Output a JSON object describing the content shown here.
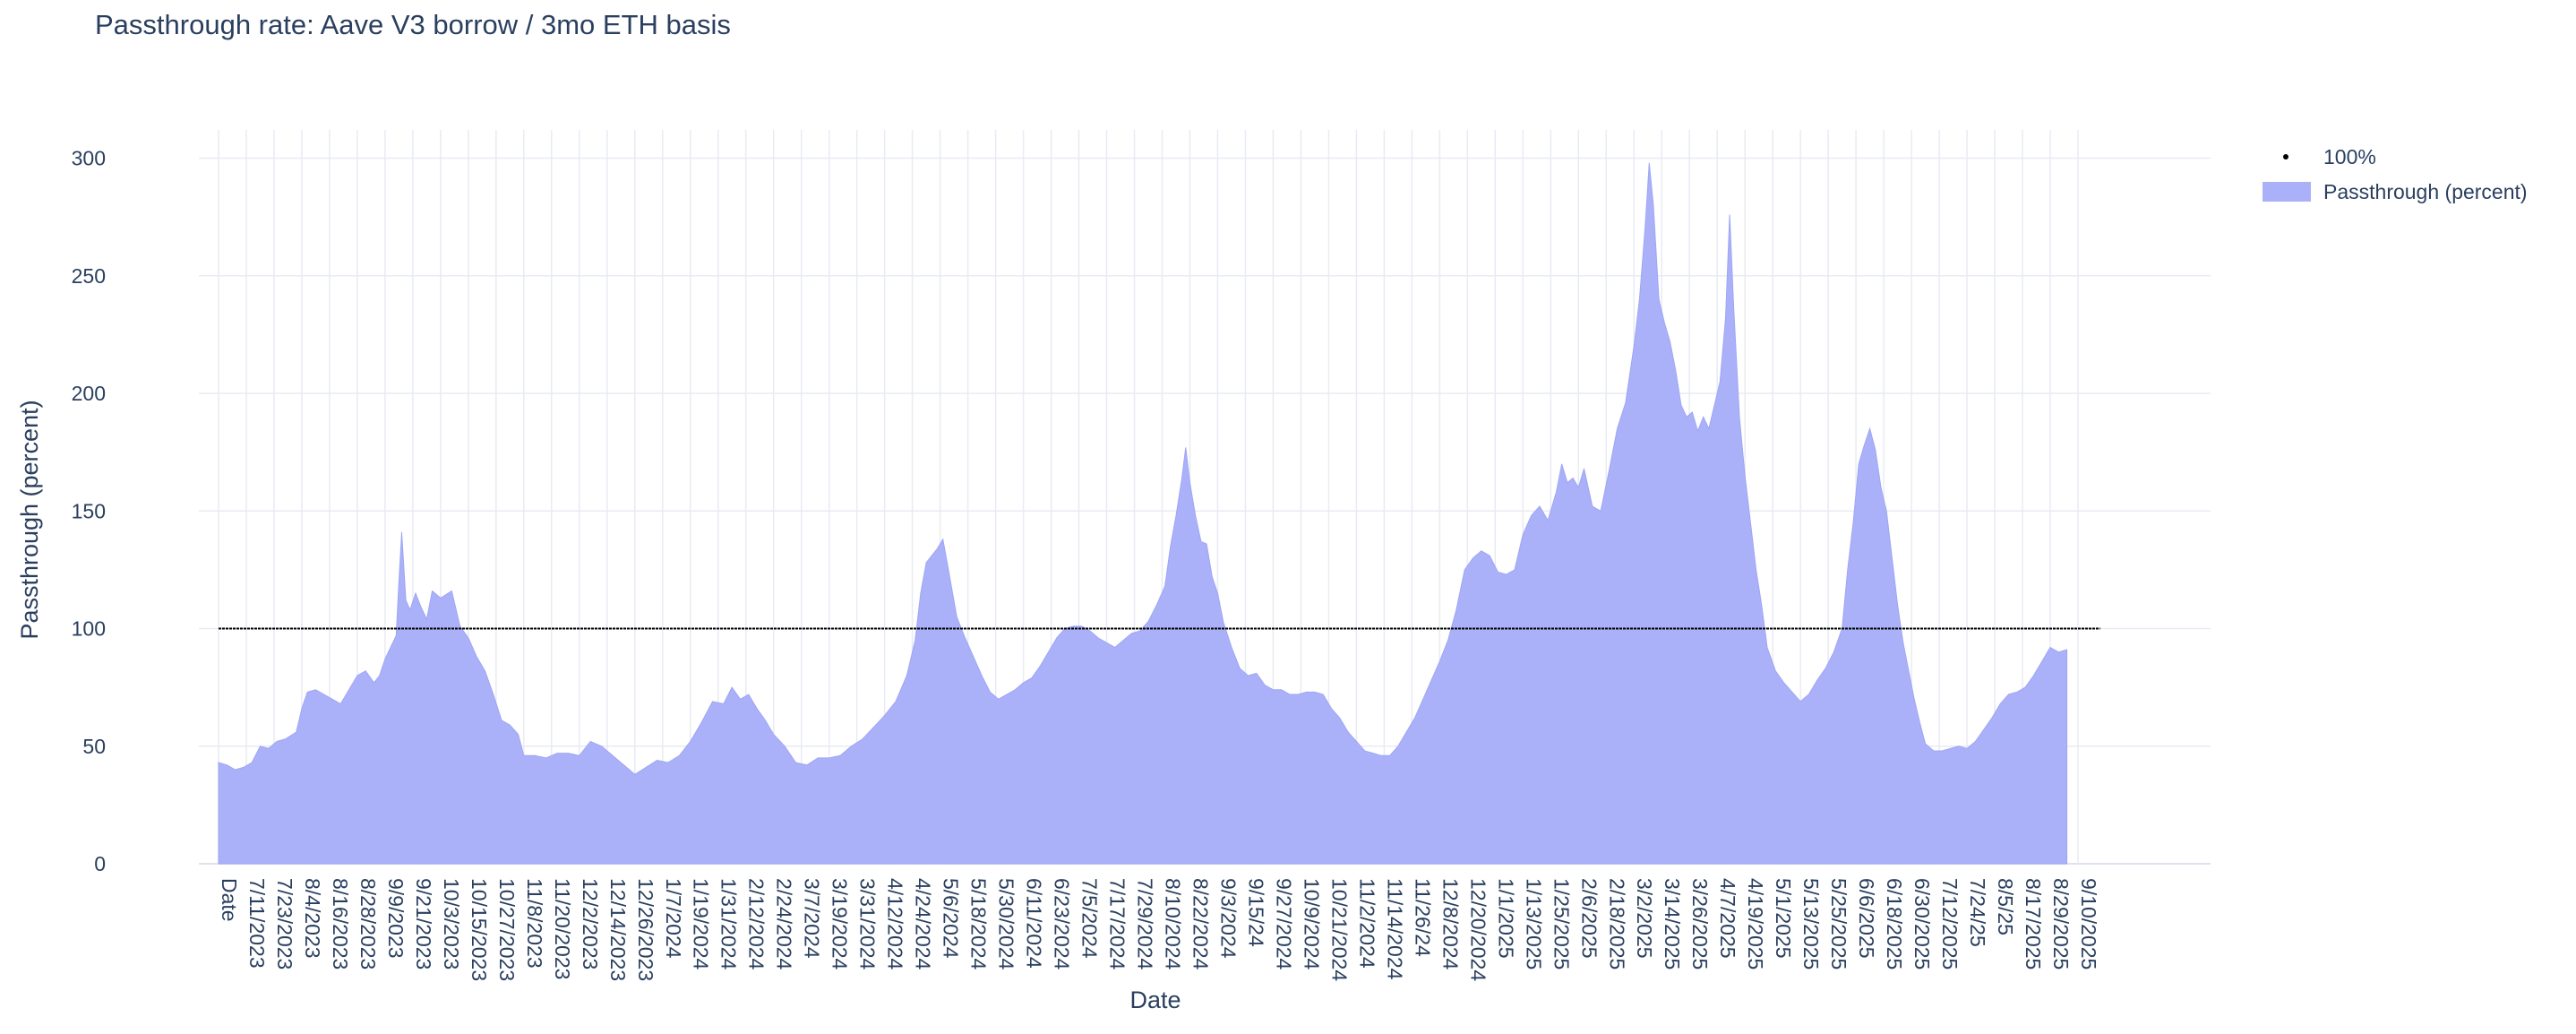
{
  "chart_data": {
    "type": "area",
    "title": "Passthrough rate: Aave V3 borrow / 3mo ETH basis",
    "xlabel": "Date",
    "ylabel": "Passthrough (percent)",
    "ylim": [
      0,
      312
    ],
    "yticks": [
      0,
      50,
      100,
      150,
      200,
      250,
      300
    ],
    "xticks": [
      "Date",
      "7/11/2023",
      "7/23/2023",
      "8/4/2023",
      "8/16/2023",
      "8/28/2023",
      "9/9/2023",
      "9/21/2023",
      "10/3/2023",
      "10/15/2023",
      "10/27/2023",
      "11/8/2023",
      "11/20/2023",
      "12/2/2023",
      "12/14/2023",
      "12/26/2023",
      "1/7/2024",
      "1/19/2024",
      "1/31/2024",
      "2/12/2024",
      "2/24/2024",
      "3/7/2024",
      "3/19/2024",
      "3/31/2024",
      "4/12/2024",
      "4/24/2024",
      "5/6/2024",
      "5/18/2024",
      "5/30/2024",
      "6/11/2024",
      "6/23/2024",
      "7/5/2024",
      "7/17/2024",
      "7/29/2024",
      "8/10/2024",
      "8/22/2024",
      "9/3/2024",
      "9/15/24",
      "9/27/2024",
      "10/9/2024",
      "10/21/2024",
      "11/2/2024",
      "11/14/2024",
      "11/26/24",
      "12/8/2024",
      "12/20/2024",
      "1/1/2025",
      "1/13/2025",
      "1/25/2025",
      "2/6/2025",
      "2/18/2025",
      "3/2/2025",
      "3/14/2025",
      "3/26/2025",
      "4/7/2025",
      "4/19/2025",
      "5/1/2025",
      "5/13/2025",
      "5/25/2025",
      "6/6/2025",
      "6/18/2025",
      "6/30/2025",
      "7/12/2025",
      "7/24/25",
      "8/5/25",
      "8/17/2025",
      "8/29/2025",
      "9/10/2025"
    ],
    "grid": true,
    "legend_position": "top-right",
    "series": [
      {
        "name": "100%",
        "style": "dotted-line",
        "color": "#000000",
        "values": [
          [
            0,
            100
          ],
          [
            67.8,
            100
          ]
        ]
      },
      {
        "name": "Passthrough (percent)",
        "style": "area",
        "color": "#aab1f8",
        "values": [
          [
            0.0,
            43
          ],
          [
            0.3,
            42
          ],
          [
            0.6,
            40
          ],
          [
            0.9,
            41
          ],
          [
            1.2,
            43
          ],
          [
            1.5,
            50
          ],
          [
            1.8,
            49
          ],
          [
            2.1,
            52
          ],
          [
            2.4,
            53
          ],
          [
            2.8,
            56
          ],
          [
            3.0,
            66
          ],
          [
            3.2,
            73
          ],
          [
            3.5,
            74
          ],
          [
            3.8,
            72
          ],
          [
            4.1,
            70
          ],
          [
            4.4,
            68
          ],
          [
            4.7,
            74
          ],
          [
            5.0,
            80
          ],
          [
            5.3,
            82
          ],
          [
            5.6,
            77
          ],
          [
            5.8,
            80
          ],
          [
            6.0,
            87
          ],
          [
            6.2,
            92
          ],
          [
            6.4,
            97
          ],
          [
            6.5,
            120
          ],
          [
            6.6,
            141
          ],
          [
            6.75,
            112
          ],
          [
            6.9,
            108
          ],
          [
            7.1,
            115
          ],
          [
            7.3,
            109
          ],
          [
            7.5,
            104
          ],
          [
            7.7,
            116
          ],
          [
            8.0,
            113
          ],
          [
            8.4,
            116
          ],
          [
            8.7,
            101
          ],
          [
            9.0,
            96
          ],
          [
            9.3,
            88
          ],
          [
            9.6,
            82
          ],
          [
            9.9,
            72
          ],
          [
            10.2,
            61
          ],
          [
            10.5,
            59
          ],
          [
            10.8,
            55
          ],
          [
            11.0,
            46
          ],
          [
            11.4,
            46
          ],
          [
            11.8,
            45
          ],
          [
            12.2,
            47
          ],
          [
            12.6,
            47
          ],
          [
            13.0,
            46
          ],
          [
            13.4,
            52
          ],
          [
            13.8,
            50
          ],
          [
            14.2,
            46
          ],
          [
            14.6,
            42
          ],
          [
            15.0,
            38
          ],
          [
            15.4,
            41
          ],
          [
            15.8,
            44
          ],
          [
            16.2,
            43
          ],
          [
            16.6,
            46
          ],
          [
            17.0,
            52
          ],
          [
            17.4,
            60
          ],
          [
            17.8,
            69
          ],
          [
            18.2,
            68
          ],
          [
            18.5,
            75
          ],
          [
            18.8,
            70
          ],
          [
            19.1,
            72
          ],
          [
            19.4,
            66
          ],
          [
            19.7,
            61
          ],
          [
            20.0,
            55
          ],
          [
            20.4,
            50
          ],
          [
            20.8,
            43
          ],
          [
            21.2,
            42
          ],
          [
            21.6,
            45
          ],
          [
            22.0,
            45
          ],
          [
            22.4,
            46
          ],
          [
            22.8,
            50
          ],
          [
            23.2,
            53
          ],
          [
            23.6,
            58
          ],
          [
            24.0,
            63
          ],
          [
            24.4,
            69
          ],
          [
            24.8,
            80
          ],
          [
            25.1,
            95
          ],
          [
            25.3,
            115
          ],
          [
            25.5,
            128
          ],
          [
            25.7,
            131
          ],
          [
            25.9,
            134
          ],
          [
            26.1,
            138
          ],
          [
            26.3,
            125
          ],
          [
            26.6,
            105
          ],
          [
            26.9,
            96
          ],
          [
            27.2,
            88
          ],
          [
            27.5,
            80
          ],
          [
            27.8,
            73
          ],
          [
            28.1,
            70
          ],
          [
            28.4,
            72
          ],
          [
            28.7,
            74
          ],
          [
            29.0,
            77
          ],
          [
            29.3,
            79
          ],
          [
            29.6,
            84
          ],
          [
            29.9,
            90
          ],
          [
            30.2,
            96
          ],
          [
            30.5,
            100
          ],
          [
            30.8,
            101
          ],
          [
            31.1,
            101
          ],
          [
            31.4,
            99
          ],
          [
            31.7,
            96
          ],
          [
            32.0,
            94
          ],
          [
            32.3,
            92
          ],
          [
            32.6,
            95
          ],
          [
            32.9,
            98
          ],
          [
            33.2,
            99
          ],
          [
            33.5,
            103
          ],
          [
            33.8,
            110
          ],
          [
            34.1,
            118
          ],
          [
            34.3,
            135
          ],
          [
            34.5,
            148
          ],
          [
            34.7,
            163
          ],
          [
            34.85,
            177
          ],
          [
            35.0,
            162
          ],
          [
            35.2,
            148
          ],
          [
            35.4,
            137
          ],
          [
            35.6,
            136
          ],
          [
            35.8,
            122
          ],
          [
            36.0,
            115
          ],
          [
            36.2,
            103
          ],
          [
            36.5,
            92
          ],
          [
            36.8,
            83
          ],
          [
            37.1,
            80
          ],
          [
            37.4,
            81
          ],
          [
            37.7,
            76
          ],
          [
            38.0,
            74
          ],
          [
            38.3,
            74
          ],
          [
            38.6,
            72
          ],
          [
            38.9,
            72
          ],
          [
            39.2,
            73
          ],
          [
            39.5,
            73
          ],
          [
            39.8,
            72
          ],
          [
            40.1,
            66
          ],
          [
            40.4,
            62
          ],
          [
            40.7,
            56
          ],
          [
            41.0,
            52
          ],
          [
            41.3,
            48
          ],
          [
            41.6,
            47
          ],
          [
            41.9,
            46
          ],
          [
            42.2,
            46
          ],
          [
            42.5,
            50
          ],
          [
            42.8,
            56
          ],
          [
            43.1,
            62
          ],
          [
            43.4,
            70
          ],
          [
            43.7,
            78
          ],
          [
            44.0,
            86
          ],
          [
            44.3,
            95
          ],
          [
            44.6,
            108
          ],
          [
            44.9,
            125
          ],
          [
            45.2,
            130
          ],
          [
            45.5,
            133
          ],
          [
            45.8,
            131
          ],
          [
            46.1,
            124
          ],
          [
            46.4,
            123
          ],
          [
            46.7,
            125
          ],
          [
            47.0,
            140
          ],
          [
            47.3,
            148
          ],
          [
            47.6,
            152
          ],
          [
            47.9,
            146
          ],
          [
            48.2,
            158
          ],
          [
            48.4,
            170
          ],
          [
            48.6,
            162
          ],
          [
            48.8,
            164
          ],
          [
            49.0,
            160
          ],
          [
            49.2,
            168
          ],
          [
            49.5,
            152
          ],
          [
            49.8,
            150
          ],
          [
            50.1,
            167
          ],
          [
            50.4,
            185
          ],
          [
            50.7,
            196
          ],
          [
            51.0,
            220
          ],
          [
            51.2,
            240
          ],
          [
            51.4,
            270
          ],
          [
            51.55,
            298
          ],
          [
            51.7,
            280
          ],
          [
            51.9,
            240
          ],
          [
            52.1,
            230
          ],
          [
            52.3,
            222
          ],
          [
            52.5,
            210
          ],
          [
            52.7,
            195
          ],
          [
            52.9,
            190
          ],
          [
            53.1,
            192
          ],
          [
            53.3,
            184
          ],
          [
            53.5,
            190
          ],
          [
            53.7,
            185
          ],
          [
            53.9,
            195
          ],
          [
            54.1,
            205
          ],
          [
            54.3,
            232
          ],
          [
            54.45,
            276
          ],
          [
            54.6,
            235
          ],
          [
            54.8,
            190
          ],
          [
            55.0,
            165
          ],
          [
            55.2,
            145
          ],
          [
            55.4,
            125
          ],
          [
            55.6,
            110
          ],
          [
            55.8,
            92
          ],
          [
            56.1,
            82
          ],
          [
            56.4,
            77
          ],
          [
            56.7,
            73
          ],
          [
            57.0,
            69
          ],
          [
            57.3,
            72
          ],
          [
            57.6,
            78
          ],
          [
            57.9,
            83
          ],
          [
            58.2,
            90
          ],
          [
            58.5,
            100
          ],
          [
            58.7,
            125
          ],
          [
            58.9,
            145
          ],
          [
            59.1,
            170
          ],
          [
            59.3,
            178
          ],
          [
            59.5,
            185
          ],
          [
            59.7,
            176
          ],
          [
            59.9,
            160
          ],
          [
            60.1,
            150
          ],
          [
            60.3,
            130
          ],
          [
            60.5,
            110
          ],
          [
            60.7,
            94
          ],
          [
            60.9,
            82
          ],
          [
            61.1,
            70
          ],
          [
            61.3,
            60
          ],
          [
            61.5,
            51
          ],
          [
            61.8,
            48
          ],
          [
            62.1,
            48
          ],
          [
            62.4,
            49
          ],
          [
            62.7,
            50
          ],
          [
            63.0,
            49
          ],
          [
            63.3,
            52
          ],
          [
            63.6,
            57
          ],
          [
            63.9,
            62
          ],
          [
            64.2,
            68
          ],
          [
            64.5,
            72
          ],
          [
            64.8,
            73
          ],
          [
            65.1,
            75
          ],
          [
            65.4,
            80
          ],
          [
            65.7,
            86
          ],
          [
            66.0,
            92
          ],
          [
            66.3,
            90
          ],
          [
            66.6,
            91
          ]
        ]
      }
    ]
  },
  "legend": {
    "items": [
      {
        "label": "100%",
        "color": "#000000"
      },
      {
        "label": "Passthrough (percent)",
        "color": "#aab1f8"
      }
    ]
  }
}
